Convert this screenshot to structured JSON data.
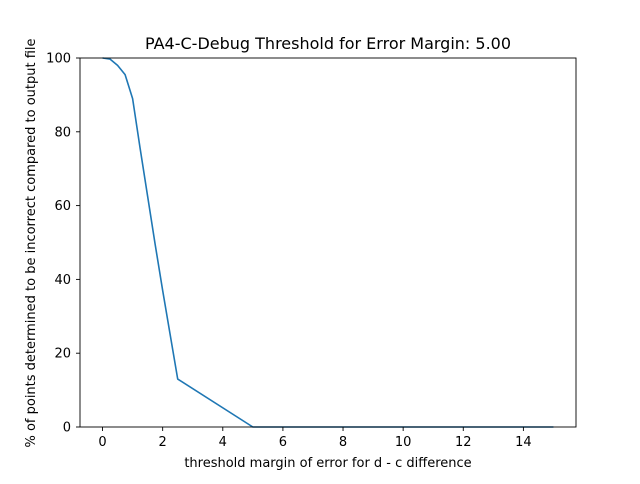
{
  "chart_data": {
    "type": "line",
    "title": "PA4-C-Debug Threshold for Error Margin: 5.00",
    "xlabel": "threshold margin of error for d - c difference",
    "ylabel": "% of points determined to be incorrect compared to output file",
    "xlim": [
      -0.75,
      15.75
    ],
    "ylim": [
      0,
      100
    ],
    "xticks": [
      0,
      2,
      4,
      6,
      8,
      10,
      12,
      14
    ],
    "yticks": [
      0,
      20,
      40,
      60,
      80,
      100
    ],
    "grid": false,
    "legend": "none",
    "series": [
      {
        "color": "#1f77b4",
        "x": [
          0,
          0.25,
          0.5,
          0.75,
          1.0,
          1.25,
          1.5,
          1.75,
          2.0,
          2.25,
          2.5,
          5.0,
          5.25,
          6,
          8,
          10,
          12,
          14,
          15
        ],
        "y": [
          100,
          99.7,
          98,
          95.5,
          89,
          75.5,
          62.5,
          49.5,
          37,
          25,
          13,
          0,
          0,
          0,
          0,
          0,
          0,
          0,
          0
        ]
      }
    ]
  }
}
